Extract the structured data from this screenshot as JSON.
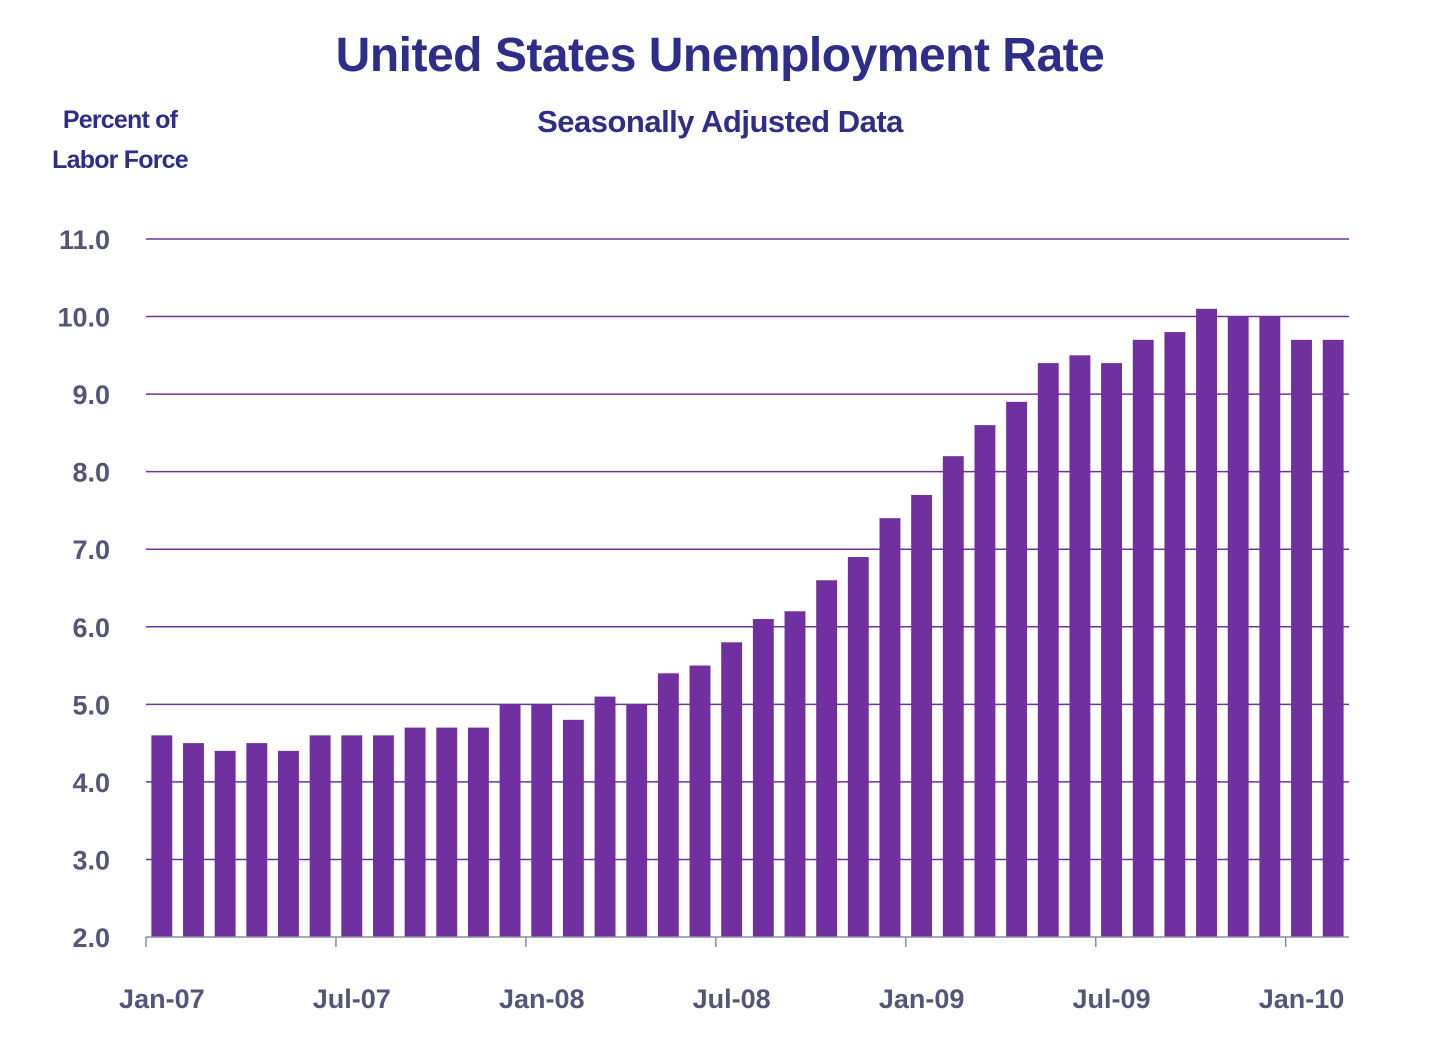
{
  "chart_data": {
    "type": "bar",
    "title": "United States Unemployment Rate",
    "subtitle": "Seasonally Adjusted Data",
    "ylabel_lines": [
      "Percent of",
      "Labor Force"
    ],
    "xlabel": "",
    "ylim": [
      2.0,
      11.0
    ],
    "yticks": [
      "2.0",
      "3.0",
      "4.0",
      "5.0",
      "6.0",
      "7.0",
      "8.0",
      "9.0",
      "10.0",
      "11.0"
    ],
    "grid": true,
    "categories": [
      "Jan-07",
      "Feb-07",
      "Mar-07",
      "Apr-07",
      "May-07",
      "Jun-07",
      "Jul-07",
      "Aug-07",
      "Sep-07",
      "Oct-07",
      "Nov-07",
      "Dec-07",
      "Jan-08",
      "Feb-08",
      "Mar-08",
      "Apr-08",
      "May-08",
      "Jun-08",
      "Jul-08",
      "Aug-08",
      "Sep-08",
      "Oct-08",
      "Nov-08",
      "Dec-08",
      "Jan-09",
      "Feb-09",
      "Mar-09",
      "Apr-09",
      "May-09",
      "Jun-09",
      "Jul-09",
      "Aug-09",
      "Sep-09",
      "Oct-09",
      "Nov-09",
      "Dec-09",
      "Jan-10",
      "Feb-10"
    ],
    "values": [
      4.6,
      4.5,
      4.4,
      4.5,
      4.4,
      4.6,
      4.6,
      4.6,
      4.7,
      4.7,
      4.7,
      5.0,
      5.0,
      4.8,
      5.1,
      5.0,
      5.4,
      5.5,
      5.8,
      6.1,
      6.2,
      6.6,
      6.9,
      7.4,
      7.7,
      8.2,
      8.6,
      8.9,
      9.4,
      9.5,
      9.4,
      9.7,
      9.8,
      10.1,
      10.0,
      10.0,
      9.7,
      9.7
    ],
    "xtick_labels": [
      "Jan-07",
      "Jul-07",
      "Jan-08",
      "Jul-08",
      "Jan-09",
      "Jul-09",
      "Jan-10"
    ],
    "bar_color": "#7030a0",
    "grid_color": "#7030a0"
  }
}
